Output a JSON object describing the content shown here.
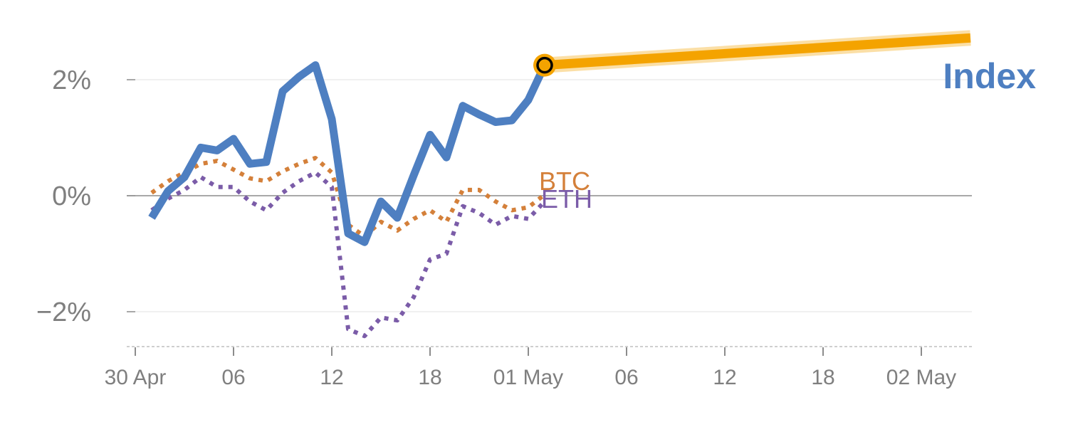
{
  "chart_data": {
    "type": "line",
    "x_ticks": [
      "30 Apr",
      "06",
      "12",
      "18",
      "01 May",
      "06",
      "12",
      "18",
      "02 May"
    ],
    "y_ticks": [
      "2%",
      "0%",
      "−2%"
    ],
    "y_tick_values": [
      2,
      0,
      -2
    ],
    "ylim": [
      -2.6,
      2.9
    ],
    "xlim_hours": [
      0,
      51
    ],
    "grid": true,
    "series": [
      {
        "name": "Index",
        "style": "solid",
        "color": "#4e7fc1",
        "x": [
          1,
          2,
          3,
          4,
          5,
          6,
          7,
          8,
          9,
          10,
          11,
          12,
          13,
          14,
          15,
          16,
          17,
          18,
          19,
          20,
          21,
          22,
          23,
          24,
          25
        ],
        "y": [
          -0.38,
          0.08,
          0.32,
          0.83,
          0.78,
          0.98,
          0.55,
          0.58,
          1.8,
          2.05,
          2.25,
          1.32,
          -0.65,
          -0.8,
          -0.1,
          -0.38,
          0.35,
          1.05,
          0.66,
          1.55,
          1.4,
          1.27,
          1.3,
          1.65,
          2.25
        ]
      },
      {
        "name": "BTC",
        "style": "dotted",
        "color": "#d4803a",
        "x": [
          1,
          2,
          3,
          4,
          5,
          6,
          7,
          8,
          9,
          10,
          11,
          12,
          13,
          14,
          15,
          16,
          17,
          18,
          19,
          20,
          21,
          22,
          23,
          24,
          25
        ],
        "y": [
          0.05,
          0.25,
          0.4,
          0.55,
          0.6,
          0.45,
          0.3,
          0.25,
          0.42,
          0.55,
          0.65,
          0.4,
          -0.5,
          -0.7,
          -0.45,
          -0.6,
          -0.4,
          -0.25,
          -0.45,
          0.1,
          0.1,
          -0.1,
          -0.25,
          -0.2,
          0.02
        ]
      },
      {
        "name": "ETH",
        "style": "dotted",
        "color": "#7b5ca8",
        "x": [
          1,
          2,
          3,
          4,
          5,
          6,
          7,
          8,
          9,
          10,
          11,
          12,
          13,
          14,
          15,
          16,
          17,
          18,
          19,
          20,
          21,
          22,
          23,
          24,
          25
        ],
        "y": [
          -0.25,
          -0.05,
          0.1,
          0.32,
          0.15,
          0.15,
          -0.1,
          -0.25,
          0.05,
          0.25,
          0.4,
          0.15,
          -2.3,
          -2.42,
          -2.1,
          -2.15,
          -1.75,
          -1.1,
          -1.0,
          -0.18,
          -0.3,
          -0.5,
          -0.35,
          -0.4,
          -0.1
        ]
      }
    ],
    "highlight": {
      "label": "Index",
      "color": "#f4a300",
      "marker_x": 25,
      "marker_y": 2.25,
      "x": [
        25,
        51
      ],
      "y": [
        2.25,
        2.72
      ]
    }
  }
}
